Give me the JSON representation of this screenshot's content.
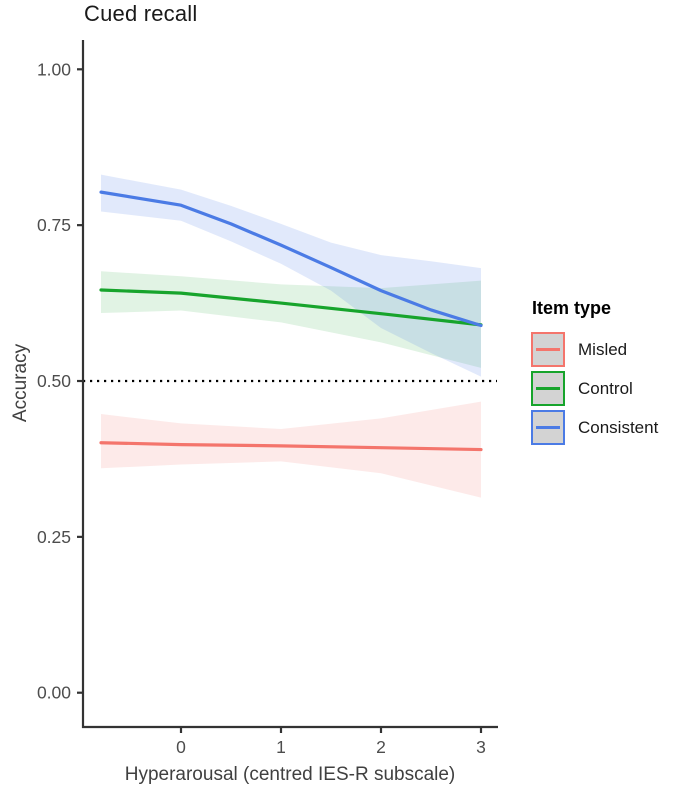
{
  "chart_data": {
    "type": "line",
    "title": "Cued recall",
    "xlabel": "Hyperarousal (centred IES-R subscale)",
    "ylabel": "Accuracy",
    "x_ticks": [
      0,
      1,
      2,
      3
    ],
    "x_tick_labels": [
      "0",
      "1",
      "2",
      "3"
    ],
    "y_ticks": [
      0,
      0.25,
      0.5,
      0.75,
      1
    ],
    "y_tick_labels": [
      "0.00",
      "0.25",
      "0.50",
      "0.75",
      "1.00"
    ],
    "xlim": [
      -0.98,
      3.17
    ],
    "ylim": [
      -0.055,
      1.047
    ],
    "grid": "off",
    "axis_color": "#333333",
    "tick_label_color": "#4d4d4d",
    "reference_line": {
      "y": 0.5,
      "style": "dotted",
      "color": "#000000"
    },
    "legend": {
      "title": "Item type",
      "position": "right",
      "key_fill": "#d3d3d3"
    },
    "series": [
      {
        "name": "Misled",
        "color": "#F4756C",
        "ribbon_opacity": 0.15,
        "x": [
          -0.8,
          0,
          1,
          2,
          3
        ],
        "y": [
          0.401,
          0.398,
          0.396,
          0.393,
          0.39
        ],
        "lower": [
          0.36,
          0.366,
          0.371,
          0.352,
          0.313
        ],
        "upper": [
          0.447,
          0.432,
          0.423,
          0.44,
          0.467
        ]
      },
      {
        "name": "Control",
        "color": "#17A42C",
        "ribbon_opacity": 0.13,
        "x": [
          -0.8,
          0,
          1,
          2,
          3
        ],
        "y": [
          0.646,
          0.641,
          0.625,
          0.608,
          0.59
        ],
        "lower": [
          0.609,
          0.613,
          0.594,
          0.562,
          0.521
        ],
        "upper": [
          0.676,
          0.668,
          0.655,
          0.649,
          0.661
        ]
      },
      {
        "name": "Consistent",
        "color": "#4B7BE5",
        "ribbon_opacity": 0.17,
        "x": [
          -0.8,
          0,
          0.5,
          1,
          1.5,
          2,
          2.5,
          3
        ],
        "y": [
          0.803,
          0.782,
          0.752,
          0.718,
          0.682,
          0.645,
          0.614,
          0.589
        ],
        "lower": [
          0.772,
          0.757,
          0.724,
          0.688,
          0.645,
          0.585,
          0.545,
          0.507
        ],
        "upper": [
          0.831,
          0.807,
          0.781,
          0.752,
          0.722,
          0.702,
          0.692,
          0.681
        ]
      }
    ]
  }
}
